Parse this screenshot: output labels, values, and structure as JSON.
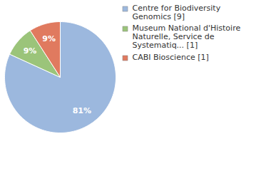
{
  "chart_data": {
    "type": "pie",
    "categories": [
      "Centre for Biodiversity Genomics [9]",
      "Museum National d'Histoire Naturelle, Service de Systematiq... [1]",
      "CABI Bioscience [1]"
    ],
    "values": [
      81,
      9,
      9
    ],
    "value_labels": [
      "81%",
      "9%",
      "9%"
    ],
    "colors": [
      "#9cb8de",
      "#9bc47a",
      "#e07a5f"
    ],
    "data_labels": true,
    "legend": "right"
  }
}
